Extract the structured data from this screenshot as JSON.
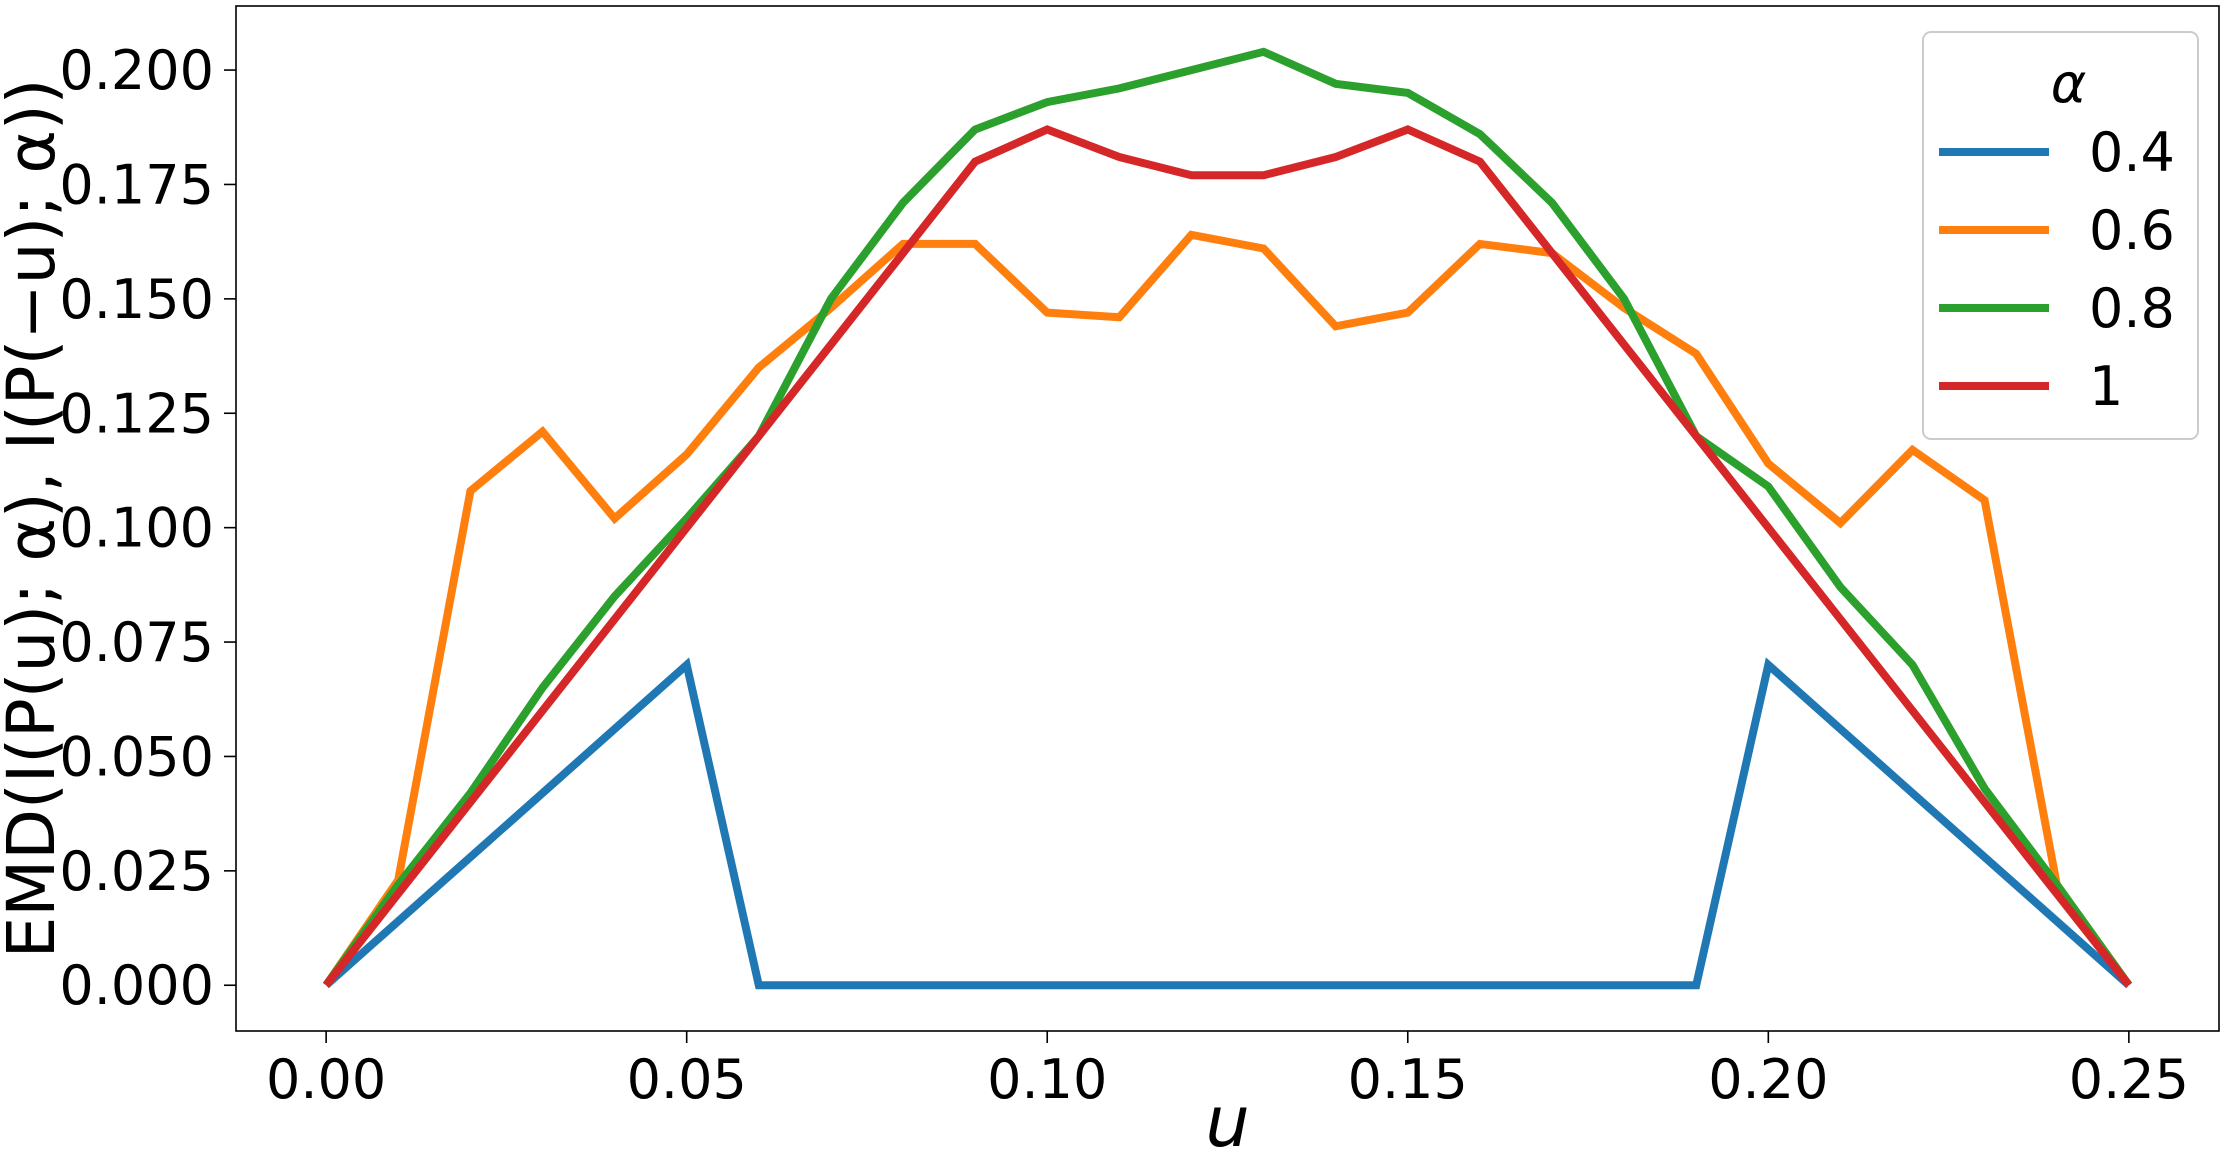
{
  "chart_data": {
    "type": "line",
    "xlabel": "u",
    "ylabel": "EMD(I(P(u); α), I(P(−u); α))",
    "xlim": [
      -0.0125,
      0.2625
    ],
    "ylim": [
      -0.01,
      0.214
    ],
    "xticks": [
      "0.00",
      "0.05",
      "0.10",
      "0.15",
      "0.20",
      "0.25"
    ],
    "yticks": [
      "0.000",
      "0.025",
      "0.050",
      "0.075",
      "0.100",
      "0.125",
      "0.150",
      "0.175",
      "0.200"
    ],
    "grid": false,
    "legend": {
      "title": "α",
      "placement": "top-right"
    },
    "x": [
      0.0,
      0.01,
      0.02,
      0.03,
      0.04,
      0.05,
      0.06,
      0.07,
      0.08,
      0.09,
      0.1,
      0.11,
      0.12,
      0.13,
      0.14,
      0.15,
      0.16,
      0.17,
      0.18,
      0.19,
      0.2,
      0.21,
      0.22,
      0.23,
      0.24,
      0.25
    ],
    "series": [
      {
        "name": "0.4",
        "color": "#1f77b4",
        "values": [
          0.0,
          0.014,
          0.028,
          0.042,
          0.056,
          0.07,
          0.0,
          0.0,
          0.0,
          0.0,
          0.0,
          0.0,
          0.0,
          0.0,
          0.0,
          0.0,
          0.0,
          0.0,
          0.0,
          0.0,
          0.07,
          0.056,
          0.042,
          0.028,
          0.014,
          0.0
        ]
      },
      {
        "name": "0.6",
        "color": "#ff7f0e",
        "values": [
          0.0,
          0.023,
          0.108,
          0.121,
          0.102,
          0.116,
          0.135,
          0.148,
          0.162,
          0.162,
          0.147,
          0.146,
          0.164,
          0.161,
          0.144,
          0.147,
          0.162,
          0.16,
          0.148,
          0.138,
          0.114,
          0.101,
          0.117,
          0.106,
          0.022,
          0.0
        ]
      },
      {
        "name": "0.8",
        "color": "#2ca02c",
        "values": [
          0.0,
          0.022,
          0.042,
          0.065,
          0.085,
          0.102,
          0.12,
          0.15,
          0.171,
          0.187,
          0.193,
          0.196,
          0.2,
          0.204,
          0.197,
          0.195,
          0.186,
          0.171,
          0.15,
          0.12,
          0.109,
          0.087,
          0.07,
          0.043,
          0.022,
          0.0
        ]
      },
      {
        "name": "1",
        "color": "#d62728",
        "values": [
          0.0,
          0.02,
          0.04,
          0.06,
          0.08,
          0.1,
          0.12,
          0.14,
          0.16,
          0.18,
          0.187,
          0.181,
          0.177,
          0.177,
          0.181,
          0.187,
          0.18,
          0.16,
          0.14,
          0.12,
          0.1,
          0.08,
          0.06,
          0.04,
          0.02,
          0.0
        ]
      }
    ]
  }
}
